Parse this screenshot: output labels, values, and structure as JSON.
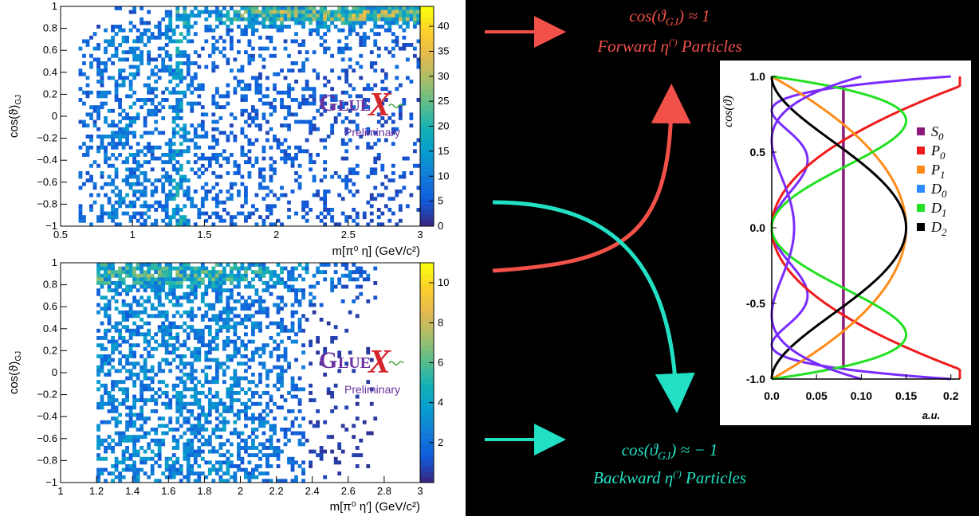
{
  "colors": {
    "background": "#000000",
    "forward": "#f2514a",
    "backward": "#22e0c4",
    "logo_purple": "#6a2fa0",
    "logo_red": "#d4262c"
  },
  "logo": {
    "text_g": "G",
    "text_lue": "LUE",
    "text_x": "X",
    "preliminary": "Preliminary"
  },
  "annotations": {
    "forward_line1": "cos(ϑ",
    "forward_sub": "GJ",
    "forward_line1_end": ") ≈ 1",
    "forward_line2": "Forward η",
    "forward_sup": "(′)",
    "forward_line2_end": " Particles",
    "backward_line1": "cos(ϑ",
    "backward_sub": "GJ",
    "backward_line1_end": ") ≈ − 1",
    "backward_line2": "Backward η",
    "backward_sup": "(′)",
    "backward_line2_end": " Particles"
  },
  "chart_data": [
    {
      "type": "heatmap",
      "id": "top",
      "xlabel": "m[π⁰ η] (GeV/c²)",
      "ylabel": "cos(ϑ)",
      "ylabel_sub": "GJ",
      "xlim": [
        0.5,
        3
      ],
      "ylim": [
        -1,
        1
      ],
      "x_ticks": [
        0.5,
        1,
        1.5,
        2,
        2.5,
        3
      ],
      "x_tick_labels": [
        "0.5",
        "1",
        "1.5",
        "2",
        "2.5",
        "3"
      ],
      "y_ticks": [
        -1,
        -0.8,
        -0.6,
        -0.4,
        -0.2,
        0,
        0.2,
        0.4,
        0.6,
        0.8,
        1
      ],
      "y_tick_labels": [
        "−1",
        "−0.8",
        "−0.6",
        "−0.4",
        "−0.2",
        "0",
        "0.2",
        "0.4",
        "0.6",
        "0.8",
        "1"
      ],
      "colorbar_range": [
        0,
        44
      ],
      "colorbar_ticks": [
        0,
        5,
        10,
        15,
        20,
        25,
        30,
        35,
        40
      ],
      "colorbar_tick_labels": [
        "0",
        "5",
        "10",
        "15",
        "20",
        "25",
        "30",
        "35",
        "40"
      ]
    },
    {
      "type": "heatmap",
      "id": "bottom",
      "xlabel": "m[π⁰ η′] (GeV/c²)",
      "ylabel": "cos(ϑ)",
      "ylabel_sub": "GJ",
      "xlim": [
        1,
        3
      ],
      "ylim": [
        -1,
        1
      ],
      "x_ticks": [
        1,
        1.2,
        1.4,
        1.6,
        1.8,
        2,
        2.2,
        2.4,
        2.6,
        2.8,
        3
      ],
      "x_tick_labels": [
        "1",
        "1.2",
        "1.4",
        "1.6",
        "1.8",
        "2",
        "2.2",
        "2.4",
        "2.6",
        "2.8",
        "3"
      ],
      "y_ticks": [
        -1,
        -0.8,
        -0.6,
        -0.4,
        -0.2,
        0,
        0.2,
        0.4,
        0.6,
        0.8,
        1
      ],
      "y_tick_labels": [
        "−1",
        "−0.8",
        "−0.6",
        "−0.4",
        "−0.2",
        "0",
        "0.2",
        "0.4",
        "0.6",
        "0.8",
        "1"
      ],
      "colorbar_range": [
        0,
        11
      ],
      "colorbar_ticks": [
        2,
        4,
        6,
        8,
        10
      ],
      "colorbar_tick_labels": [
        "2",
        "4",
        "6",
        "8",
        "10"
      ]
    },
    {
      "type": "line",
      "id": "angular",
      "ylabel": "cos(ϑ)",
      "xlabel": "a.u.",
      "xlim": [
        0,
        0.21
      ],
      "ylim": [
        -1,
        1
      ],
      "x_ticks": [
        0,
        0.05,
        0.1,
        0.15,
        0.2
      ],
      "x_tick_labels": [
        "0.0",
        "0.05",
        "0.10",
        "0.15",
        "0.2"
      ],
      "y_ticks": [
        1,
        0.5,
        0,
        -0.5,
        -1
      ],
      "y_tick_labels": [
        "1.0",
        "0.5",
        "0.0",
        "-0.5",
        "-1.0"
      ],
      "legend_position": "right",
      "series": [
        {
          "name": "S",
          "sub": "0",
          "color": "#8b1a7a",
          "formula": "S0"
        },
        {
          "name": "P",
          "sub": "0",
          "color": "#ee1c1c",
          "formula": "P0"
        },
        {
          "name": "P",
          "sub": "1",
          "color": "#ff8c1a",
          "formula": "P1"
        },
        {
          "name": "D",
          "sub": "0",
          "color": "#2b8cff",
          "formula": "D0"
        },
        {
          "name": "D",
          "sub": "1",
          "color": "#22e022",
          "formula": "D1"
        },
        {
          "name": "D",
          "sub": "2",
          "color": "#000000",
          "formula": "D2"
        }
      ],
      "extra_curve_color": "#7a2bff"
    }
  ]
}
